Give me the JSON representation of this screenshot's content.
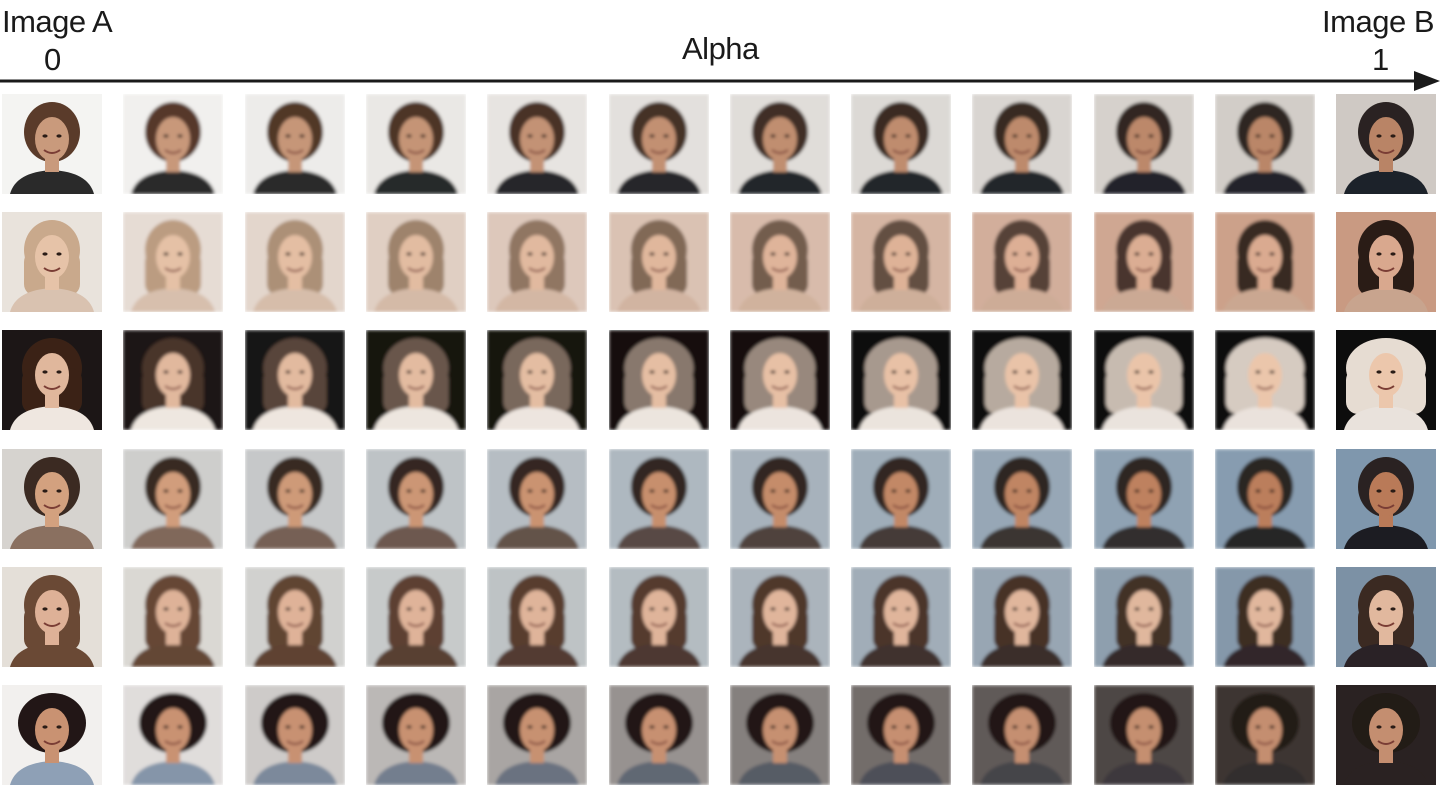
{
  "header": {
    "start_label": "Image A",
    "start_value": "0",
    "end_label": "Image B",
    "end_value": "1",
    "axis_label": "Alpha"
  },
  "grid": {
    "rows": 6,
    "columns": 12,
    "row_styles": [
      {
        "bg_a": "#f4f4f2",
        "bg_b": "#cfc9c4",
        "hair_a": "#5a3b2a",
        "hair_b": "#2a2420",
        "skin_a": "#c99a7c",
        "skin_b": "#b98466",
        "cloth_a": "#2b2b2b",
        "cloth_b": "#1f232b"
      },
      {
        "bg_a": "#e9e3dc",
        "bg_b": "#c99a82",
        "hair_a": "#c9a98c",
        "hair_b": "#2b1d18",
        "skin_a": "#e6c3a8",
        "skin_b": "#d9a88e",
        "cloth_a": "#d9c2b0",
        "cloth_b": "#c8a48e"
      },
      {
        "bg_a": "#1b1614",
        "bg_b": "#0c0a0a",
        "hair_a": "#3a2418",
        "hair_b": "#e6dcd2",
        "skin_a": "#e0b79c",
        "skin_b": "#ecc7ac",
        "cloth_a": "#efe7e0",
        "cloth_b": "#e9e2dc"
      },
      {
        "bg_a": "#d6d3cf",
        "bg_b": "#7f97ad",
        "hair_a": "#3a2a22",
        "hair_b": "#2a2420",
        "skin_a": "#d3a17f",
        "skin_b": "#b97a58",
        "cloth_a": "#8a6f60",
        "cloth_b": "#1e1e22"
      },
      {
        "bg_a": "#e4dfd8",
        "bg_b": "#7b91a5",
        "hair_a": "#6a4a36",
        "hair_b": "#3a2a22",
        "skin_a": "#deb197",
        "skin_b": "#e1b89e",
        "cloth_a": "#6a4a36",
        "cloth_b": "#2a2228"
      },
      {
        "bg_a": "#f2f0ee",
        "bg_b": "#2a2220",
        "hair_a": "#201614",
        "hair_b": "#241a16",
        "skin_a": "#c99272",
        "skin_b": "#c48e70",
        "cloth_a": "#8ea0b6",
        "cloth_b": "#2a2222"
      }
    ]
  }
}
